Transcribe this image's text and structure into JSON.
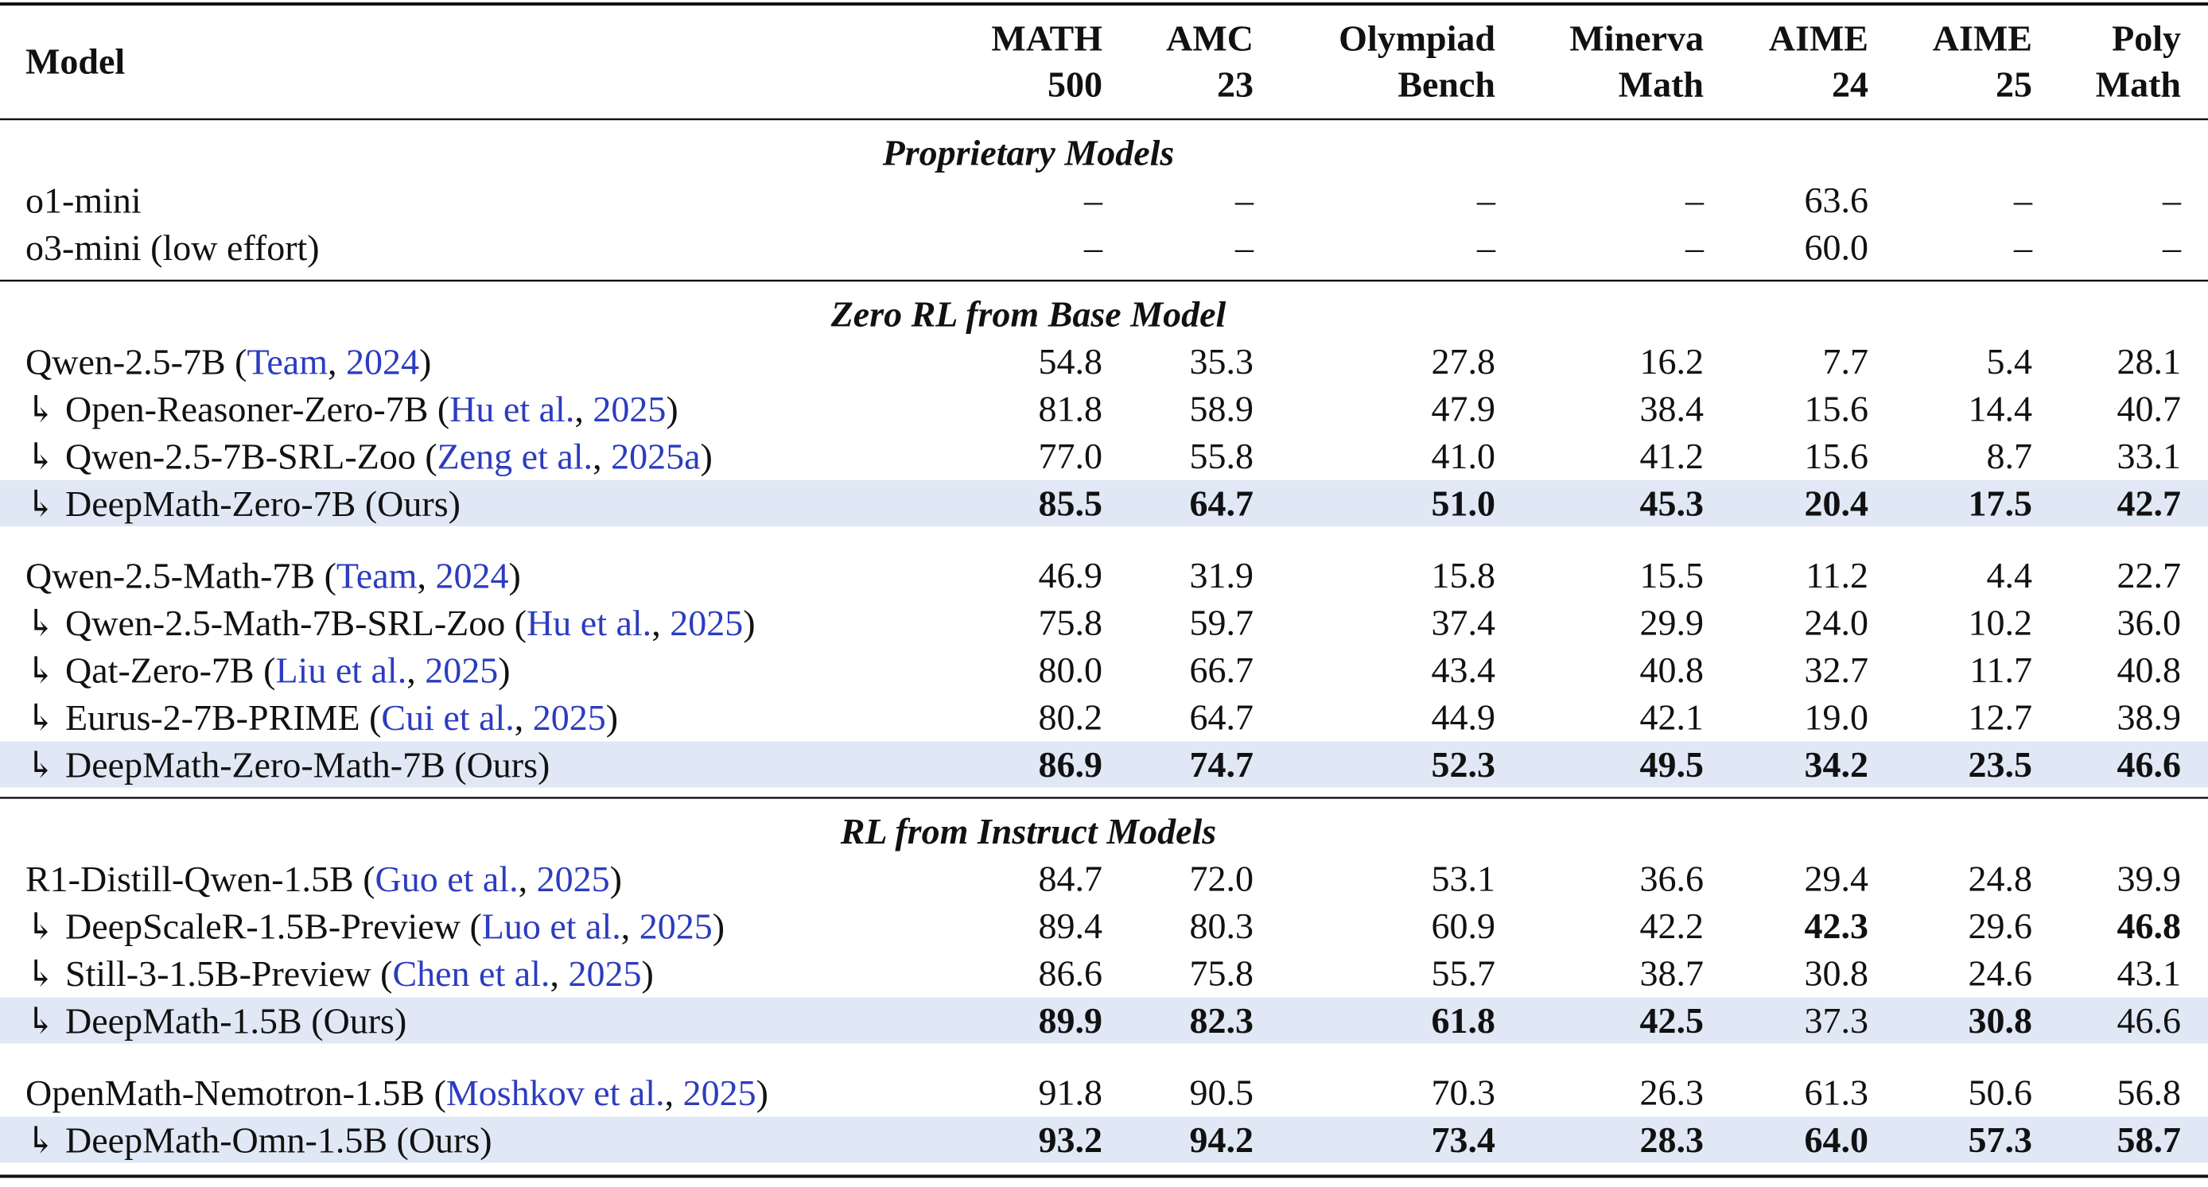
{
  "table": {
    "header": {
      "model": "Model",
      "columns": [
        [
          "MATH",
          "500"
        ],
        [
          "AMC",
          "23"
        ],
        [
          "Olympiad",
          "Bench"
        ],
        [
          "Minerva",
          "Math"
        ],
        [
          "AIME",
          "24"
        ],
        [
          "AIME",
          "25"
        ],
        [
          "Poly",
          "Math"
        ]
      ]
    },
    "sections": [
      {
        "title": "Proprietary Models",
        "groups": [
          [
            {
              "model": [
                "o1-mini"
              ],
              "values": [
                "–",
                "–",
                "–",
                "–",
                "63.6",
                "–",
                "–"
              ],
              "bold": []
            },
            {
              "model": [
                "o3-mini (low effort)"
              ],
              "values": [
                "–",
                "–",
                "–",
                "–",
                "60.0",
                "–",
                "–"
              ],
              "bold": []
            }
          ]
        ]
      },
      {
        "title": "Zero RL from Base Model",
        "groups": [
          [
            {
              "model": [
                "Qwen-2.5-7B (",
                {
                  "text": "Team",
                  "link": true
                },
                ", ",
                {
                  "text": "2024",
                  "link": true
                },
                ")"
              ],
              "values": [
                "54.8",
                "35.3",
                "27.8",
                "16.2",
                "7.7",
                "5.4",
                "28.1"
              ],
              "bold": []
            },
            {
              "model": [
                "↳ Open-Reasoner-Zero-7B (",
                {
                  "text": "Hu et al.",
                  "link": true
                },
                ", ",
                {
                  "text": "2025",
                  "link": true
                },
                ")"
              ],
              "values": [
                "81.8",
                "58.9",
                "47.9",
                "38.4",
                "15.6",
                "14.4",
                "40.7"
              ],
              "bold": []
            },
            {
              "model": [
                "↳ Qwen-2.5-7B-SRL-Zoo (",
                {
                  "text": "Zeng et al.",
                  "link": true
                },
                ", ",
                {
                  "text": "2025a",
                  "link": true
                },
                ")"
              ],
              "values": [
                "77.0",
                "55.8",
                "41.0",
                "41.2",
                "15.6",
                "8.7",
                "33.1"
              ],
              "bold": []
            },
            {
              "model": [
                "↳ DeepMath-Zero-7B (Ours)"
              ],
              "values": [
                "85.5",
                "64.7",
                "51.0",
                "45.3",
                "20.4",
                "17.5",
                "42.7"
              ],
              "bold": [
                0,
                1,
                2,
                3,
                4,
                5,
                6
              ],
              "highlight": true
            }
          ],
          [
            {
              "model": [
                "Qwen-2.5-Math-7B (",
                {
                  "text": "Team",
                  "link": true
                },
                ", ",
                {
                  "text": "2024",
                  "link": true
                },
                ")"
              ],
              "values": [
                "46.9",
                "31.9",
                "15.8",
                "15.5",
                "11.2",
                "4.4",
                "22.7"
              ],
              "bold": []
            },
            {
              "model": [
                "↳ Qwen-2.5-Math-7B-SRL-Zoo (",
                {
                  "text": "Hu et al.",
                  "link": true
                },
                ", ",
                {
                  "text": "2025",
                  "link": true
                },
                ")"
              ],
              "values": [
                "75.8",
                "59.7",
                "37.4",
                "29.9",
                "24.0",
                "10.2",
                "36.0"
              ],
              "bold": []
            },
            {
              "model": [
                "↳ Qat-Zero-7B (",
                {
                  "text": "Liu et al.",
                  "link": true
                },
                ", ",
                {
                  "text": "2025",
                  "link": true
                },
                ")"
              ],
              "values": [
                "80.0",
                "66.7",
                "43.4",
                "40.8",
                "32.7",
                "11.7",
                "40.8"
              ],
              "bold": []
            },
            {
              "model": [
                "↳ Eurus-2-7B-PRIME (",
                {
                  "text": "Cui et al.",
                  "link": true
                },
                ", ",
                {
                  "text": "2025",
                  "link": true
                },
                ")"
              ],
              "values": [
                "80.2",
                "64.7",
                "44.9",
                "42.1",
                "19.0",
                "12.7",
                "38.9"
              ],
              "bold": []
            },
            {
              "model": [
                "↳ DeepMath-Zero-Math-7B (Ours)"
              ],
              "values": [
                "86.9",
                "74.7",
                "52.3",
                "49.5",
                "34.2",
                "23.5",
                "46.6"
              ],
              "bold": [
                0,
                1,
                2,
                3,
                4,
                5,
                6
              ],
              "highlight": true
            }
          ]
        ]
      },
      {
        "title": "RL from Instruct Models",
        "groups": [
          [
            {
              "model": [
                "R1-Distill-Qwen-1.5B (",
                {
                  "text": "Guo et al.",
                  "link": true
                },
                ", ",
                {
                  "text": "2025",
                  "link": true
                },
                ")"
              ],
              "values": [
                "84.7",
                "72.0",
                "53.1",
                "36.6",
                "29.4",
                "24.8",
                "39.9"
              ],
              "bold": []
            },
            {
              "model": [
                "↳ DeepScaleR-1.5B-Preview (",
                {
                  "text": "Luo et al.",
                  "link": true
                },
                ", ",
                {
                  "text": "2025",
                  "link": true
                },
                ")"
              ],
              "values": [
                "89.4",
                "80.3",
                "60.9",
                "42.2",
                "42.3",
                "29.6",
                "46.8"
              ],
              "bold": [
                4,
                6
              ]
            },
            {
              "model": [
                "↳ Still-3-1.5B-Preview (",
                {
                  "text": "Chen et al.",
                  "link": true
                },
                ", ",
                {
                  "text": "2025",
                  "link": true
                },
                ")"
              ],
              "values": [
                "86.6",
                "75.8",
                "55.7",
                "38.7",
                "30.8",
                "24.6",
                "43.1"
              ],
              "bold": []
            },
            {
              "model": [
                "↳ DeepMath-1.5B (Ours)"
              ],
              "values": [
                "89.9",
                "82.3",
                "61.8",
                "42.5",
                "37.3",
                "30.8",
                "46.6"
              ],
              "bold": [
                0,
                1,
                2,
                3,
                5
              ],
              "highlight": true
            }
          ],
          [
            {
              "model": [
                "OpenMath-Nemotron-1.5B (",
                {
                  "text": "Moshkov et al.",
                  "link": true
                },
                ", ",
                {
                  "text": "2025",
                  "link": true
                },
                ")"
              ],
              "values": [
                "91.8",
                "90.5",
                "70.3",
                "26.3",
                "61.3",
                "50.6",
                "56.8"
              ],
              "bold": []
            },
            {
              "model": [
                "↳ DeepMath-Omn-1.5B (Ours)"
              ],
              "values": [
                "93.2",
                "94.2",
                "73.4",
                "28.3",
                "64.0",
                "57.3",
                "58.7"
              ],
              "bold": [
                0,
                1,
                2,
                3,
                4,
                5,
                6
              ],
              "highlight": true
            }
          ]
        ]
      }
    ]
  }
}
